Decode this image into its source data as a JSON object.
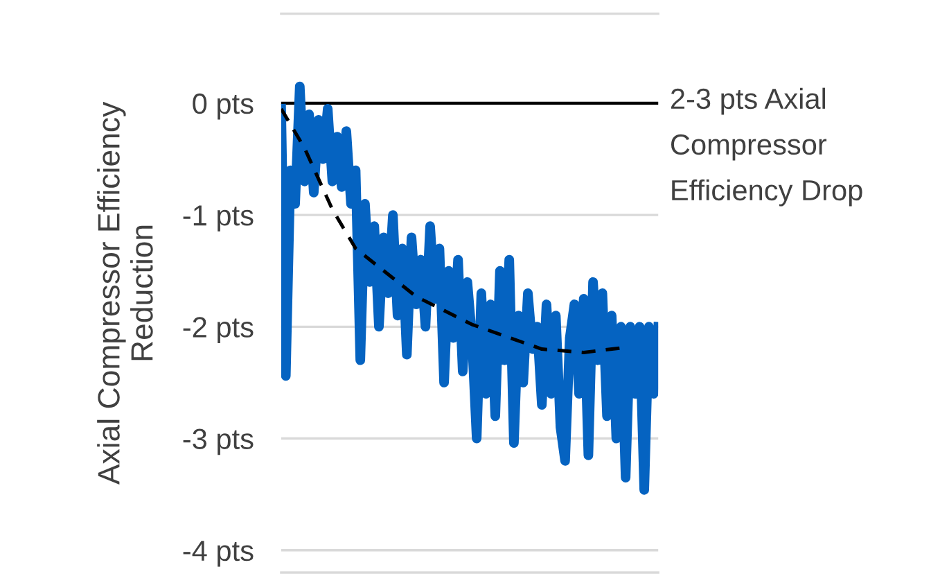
{
  "chart_data": {
    "type": "line",
    "ylabel": "Axial Compressor Efficiency\nReduction",
    "categories": [
      null,
      null,
      null,
      null,
      null,
      null,
      null,
      null,
      null,
      null,
      null,
      null,
      null,
      null,
      null,
      null,
      null,
      null,
      null,
      null,
      null,
      null,
      null,
      null,
      null,
      null,
      null,
      null,
      null,
      null,
      null,
      null,
      null,
      null,
      null,
      null,
      null,
      null,
      null,
      null,
      null,
      null,
      null,
      null,
      null,
      null,
      null,
      null,
      null,
      null,
      null,
      null,
      null,
      null,
      null,
      null,
      null,
      null,
      null,
      null,
      null,
      null,
      null,
      null,
      null,
      null,
      null,
      null,
      null,
      null,
      null,
      null,
      null,
      null,
      null,
      null,
      null,
      null,
      null,
      null,
      null,
      null
    ],
    "ylim": [
      -4.2,
      0.8
    ],
    "yticks": [
      {
        "value": 0,
        "label": "0 pts"
      },
      {
        "value": -1,
        "label": "-1 pts"
      },
      {
        "value": -2,
        "label": "-2 pts"
      },
      {
        "value": -3,
        "label": "-3 pts"
      },
      {
        "value": -4,
        "label": "-4 pts"
      }
    ],
    "tick_labels": "y",
    "grid": "y",
    "ref_lines": [
      {
        "axis": "y",
        "value": 0,
        "label": "2-3 pts Axial\nCompressor\nEfficiency Drop",
        "color": "#000000",
        "line_style": "solid"
      }
    ],
    "series": [
      {
        "color": "#0563c1",
        "line_style": "solid",
        "values": [
          -0.05,
          -2.44,
          -0.6,
          -0.9,
          0.15,
          -0.7,
          -0.1,
          -0.8,
          -0.15,
          -0.5,
          -0.05,
          -0.7,
          -0.3,
          -0.75,
          -0.25,
          -0.9,
          -0.6,
          -2.3,
          -0.9,
          -1.6,
          -1.1,
          -2.0,
          -1.2,
          -1.7,
          -1.0,
          -1.9,
          -1.3,
          -2.25,
          -1.2,
          -1.8,
          -1.4,
          -2.0,
          -1.1,
          -1.75,
          -1.3,
          -2.5,
          -1.5,
          -2.1,
          -1.4,
          -2.4,
          -1.6,
          -2.1,
          -3.0,
          -1.7,
          -2.6,
          -1.8,
          -2.8,
          -1.5,
          -2.3,
          -1.4,
          -3.04,
          -1.9,
          -2.5,
          -1.7,
          -2.2,
          -2.0,
          -2.7,
          -1.8,
          -2.6,
          -1.9,
          -2.9,
          -3.2,
          -2.1,
          -1.8,
          -2.6,
          -1.75,
          -3.15,
          -1.6,
          -2.3,
          -1.7,
          -2.8,
          -1.9,
          -3.0,
          -2.0,
          -3.35,
          -2.0,
          -2.6,
          -2.0,
          -3.46,
          -2.0,
          -2.6,
          -2.0
        ]
      },
      {
        "color": "#000000",
        "line_style": "dashed",
        "values": [
          -0.05,
          null,
          null,
          null,
          null,
          -0.4,
          null,
          null,
          null,
          null,
          null,
          -0.95,
          null,
          null,
          null,
          null,
          -1.3,
          null,
          null,
          null,
          null,
          null,
          null,
          null,
          null,
          null,
          null,
          null,
          null,
          -1.73,
          null,
          null,
          null,
          null,
          null,
          null,
          null,
          null,
          null,
          null,
          null,
          -1.98,
          null,
          null,
          null,
          null,
          null,
          null,
          null,
          null,
          null,
          null,
          null,
          null,
          null,
          null,
          -2.2,
          null,
          null,
          null,
          null,
          null,
          null,
          null,
          null,
          -2.23,
          null,
          null,
          null,
          null,
          null,
          null,
          null,
          -2.19,
          null,
          null,
          null,
          null,
          null,
          null,
          null,
          null
        ]
      }
    ]
  }
}
